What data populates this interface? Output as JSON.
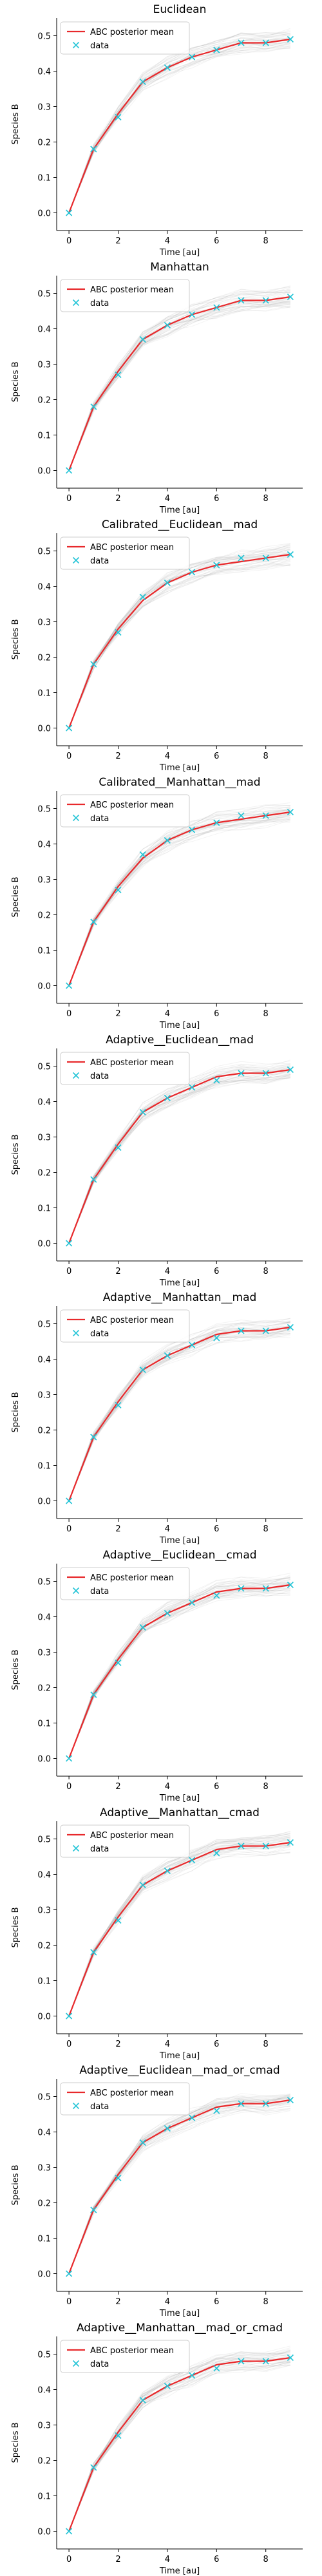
{
  "figure": {
    "colors": {
      "mean": "#e8292c",
      "data": "#22c4d6",
      "sims": "#9a9a9a"
    }
  },
  "chart_data": [
    {
      "type": "line",
      "title": "Euclidean",
      "xlabel": "Time [au]",
      "ylabel": "Species B",
      "xlim": [
        -0.5,
        9.5
      ],
      "ylim": [
        -0.05,
        0.55
      ],
      "xticks": [
        0,
        2,
        4,
        6,
        8
      ],
      "yticks": [
        0.0,
        0.1,
        0.2,
        0.3,
        0.4,
        0.5
      ],
      "grid": false,
      "legend_position": "top-left",
      "x": [
        0,
        1,
        2,
        3,
        4,
        5,
        6,
        7,
        8,
        9
      ],
      "series": [
        {
          "name": "ABC posterior mean",
          "values": [
            0.0,
            0.18,
            0.28,
            0.37,
            0.41,
            0.44,
            0.46,
            0.48,
            0.48,
            0.49
          ]
        },
        {
          "name": "data",
          "values": [
            0.0,
            0.18,
            0.27,
            0.37,
            0.41,
            0.44,
            0.46,
            0.48,
            0.48,
            0.49
          ]
        }
      ]
    },
    {
      "type": "line",
      "title": "Manhattan",
      "xlabel": "Time [au]",
      "ylabel": "Species B",
      "xlim": [
        -0.5,
        9.5
      ],
      "ylim": [
        -0.05,
        0.55
      ],
      "xticks": [
        0,
        2,
        4,
        6,
        8
      ],
      "yticks": [
        0.0,
        0.1,
        0.2,
        0.3,
        0.4,
        0.5
      ],
      "grid": false,
      "legend_position": "top-left",
      "x": [
        0,
        1,
        2,
        3,
        4,
        5,
        6,
        7,
        8,
        9
      ],
      "series": [
        {
          "name": "ABC posterior mean",
          "values": [
            0.0,
            0.18,
            0.28,
            0.37,
            0.41,
            0.44,
            0.46,
            0.48,
            0.48,
            0.49
          ]
        },
        {
          "name": "data",
          "values": [
            0.0,
            0.18,
            0.27,
            0.37,
            0.41,
            0.44,
            0.46,
            0.48,
            0.48,
            0.49
          ]
        }
      ]
    },
    {
      "type": "line",
      "title": "Calibrated__Euclidean__mad",
      "xlabel": "Time [au]",
      "ylabel": "Species B",
      "xlim": [
        -0.5,
        9.5
      ],
      "ylim": [
        -0.05,
        0.55
      ],
      "xticks": [
        0,
        2,
        4,
        6,
        8
      ],
      "yticks": [
        0.0,
        0.1,
        0.2,
        0.3,
        0.4,
        0.5
      ],
      "grid": false,
      "legend_position": "top-left",
      "x": [
        0,
        1,
        2,
        3,
        4,
        5,
        6,
        7,
        8,
        9
      ],
      "series": [
        {
          "name": "ABC posterior mean",
          "values": [
            0.0,
            0.18,
            0.28,
            0.36,
            0.41,
            0.44,
            0.46,
            0.47,
            0.48,
            0.49
          ]
        },
        {
          "name": "data",
          "values": [
            0.0,
            0.18,
            0.27,
            0.37,
            0.41,
            0.44,
            0.46,
            0.48,
            0.48,
            0.49
          ]
        }
      ]
    },
    {
      "type": "line",
      "title": "Calibrated__Manhattan__mad",
      "xlabel": "Time [au]",
      "ylabel": "Species B",
      "xlim": [
        -0.5,
        9.5
      ],
      "ylim": [
        -0.05,
        0.55
      ],
      "xticks": [
        0,
        2,
        4,
        6,
        8
      ],
      "yticks": [
        0.0,
        0.1,
        0.2,
        0.3,
        0.4,
        0.5
      ],
      "grid": false,
      "legend_position": "top-left",
      "x": [
        0,
        1,
        2,
        3,
        4,
        5,
        6,
        7,
        8,
        9
      ],
      "series": [
        {
          "name": "ABC posterior mean",
          "values": [
            0.0,
            0.18,
            0.28,
            0.36,
            0.41,
            0.44,
            0.46,
            0.47,
            0.48,
            0.49
          ]
        },
        {
          "name": "data",
          "values": [
            0.0,
            0.18,
            0.27,
            0.37,
            0.41,
            0.44,
            0.46,
            0.48,
            0.48,
            0.49
          ]
        }
      ]
    },
    {
      "type": "line",
      "title": "Adaptive__Euclidean__mad",
      "xlabel": "Time [au]",
      "ylabel": "Species B",
      "xlim": [
        -0.5,
        9.5
      ],
      "ylim": [
        -0.05,
        0.55
      ],
      "xticks": [
        0,
        2,
        4,
        6,
        8
      ],
      "yticks": [
        0.0,
        0.1,
        0.2,
        0.3,
        0.4,
        0.5
      ],
      "grid": false,
      "legend_position": "top-left",
      "x": [
        0,
        1,
        2,
        3,
        4,
        5,
        6,
        7,
        8,
        9
      ],
      "series": [
        {
          "name": "ABC posterior mean",
          "values": [
            0.0,
            0.18,
            0.28,
            0.37,
            0.41,
            0.44,
            0.47,
            0.48,
            0.48,
            0.49
          ]
        },
        {
          "name": "data",
          "values": [
            0.0,
            0.18,
            0.27,
            0.37,
            0.41,
            0.44,
            0.46,
            0.48,
            0.48,
            0.49
          ]
        }
      ]
    },
    {
      "type": "line",
      "title": "Adaptive__Manhattan__mad",
      "xlabel": "Time [au]",
      "ylabel": "Species B",
      "xlim": [
        -0.5,
        9.5
      ],
      "ylim": [
        -0.05,
        0.55
      ],
      "xticks": [
        0,
        2,
        4,
        6,
        8
      ],
      "yticks": [
        0.0,
        0.1,
        0.2,
        0.3,
        0.4,
        0.5
      ],
      "grid": false,
      "legend_position": "top-left",
      "x": [
        0,
        1,
        2,
        3,
        4,
        5,
        6,
        7,
        8,
        9
      ],
      "series": [
        {
          "name": "ABC posterior mean",
          "values": [
            0.0,
            0.18,
            0.28,
            0.37,
            0.41,
            0.44,
            0.47,
            0.48,
            0.48,
            0.49
          ]
        },
        {
          "name": "data",
          "values": [
            0.0,
            0.18,
            0.27,
            0.37,
            0.41,
            0.44,
            0.46,
            0.48,
            0.48,
            0.49
          ]
        }
      ]
    },
    {
      "type": "line",
      "title": "Adaptive__Euclidean__cmad",
      "xlabel": "Time [au]",
      "ylabel": "Species B",
      "xlim": [
        -0.5,
        9.5
      ],
      "ylim": [
        -0.05,
        0.55
      ],
      "xticks": [
        0,
        2,
        4,
        6,
        8
      ],
      "yticks": [
        0.0,
        0.1,
        0.2,
        0.3,
        0.4,
        0.5
      ],
      "grid": false,
      "legend_position": "top-left",
      "x": [
        0,
        1,
        2,
        3,
        4,
        5,
        6,
        7,
        8,
        9
      ],
      "series": [
        {
          "name": "ABC posterior mean",
          "values": [
            0.0,
            0.18,
            0.28,
            0.37,
            0.41,
            0.44,
            0.47,
            0.48,
            0.48,
            0.49
          ]
        },
        {
          "name": "data",
          "values": [
            0.0,
            0.18,
            0.27,
            0.37,
            0.41,
            0.44,
            0.46,
            0.48,
            0.48,
            0.49
          ]
        }
      ]
    },
    {
      "type": "line",
      "title": "Adaptive__Manhattan__cmad",
      "xlabel": "Time [au]",
      "ylabel": "Species B",
      "xlim": [
        -0.5,
        9.5
      ],
      "ylim": [
        -0.05,
        0.55
      ],
      "xticks": [
        0,
        2,
        4,
        6,
        8
      ],
      "yticks": [
        0.0,
        0.1,
        0.2,
        0.3,
        0.4,
        0.5
      ],
      "grid": false,
      "legend_position": "top-left",
      "x": [
        0,
        1,
        2,
        3,
        4,
        5,
        6,
        7,
        8,
        9
      ],
      "series": [
        {
          "name": "ABC posterior mean",
          "values": [
            0.0,
            0.18,
            0.28,
            0.37,
            0.41,
            0.44,
            0.47,
            0.48,
            0.48,
            0.49
          ]
        },
        {
          "name": "data",
          "values": [
            0.0,
            0.18,
            0.27,
            0.37,
            0.41,
            0.44,
            0.46,
            0.48,
            0.48,
            0.49
          ]
        }
      ]
    },
    {
      "type": "line",
      "title": "Adaptive__Euclidean__mad_or_cmad",
      "xlabel": "Time [au]",
      "ylabel": "Species B",
      "xlim": [
        -0.5,
        9.5
      ],
      "ylim": [
        -0.05,
        0.55
      ],
      "xticks": [
        0,
        2,
        4,
        6,
        8
      ],
      "yticks": [
        0.0,
        0.1,
        0.2,
        0.3,
        0.4,
        0.5
      ],
      "grid": false,
      "legend_position": "top-left",
      "x": [
        0,
        1,
        2,
        3,
        4,
        5,
        6,
        7,
        8,
        9
      ],
      "series": [
        {
          "name": "ABC posterior mean",
          "values": [
            0.0,
            0.18,
            0.28,
            0.37,
            0.41,
            0.44,
            0.47,
            0.48,
            0.48,
            0.49
          ]
        },
        {
          "name": "data",
          "values": [
            0.0,
            0.18,
            0.27,
            0.37,
            0.41,
            0.44,
            0.46,
            0.48,
            0.48,
            0.49
          ]
        }
      ]
    },
    {
      "type": "line",
      "title": "Adaptive__Manhattan__mad_or_cmad",
      "xlabel": "Time [au]",
      "ylabel": "Species B",
      "xlim": [
        -0.5,
        9.5
      ],
      "ylim": [
        -0.05,
        0.55
      ],
      "xticks": [
        0,
        2,
        4,
        6,
        8
      ],
      "yticks": [
        0.0,
        0.1,
        0.2,
        0.3,
        0.4,
        0.5
      ],
      "grid": false,
      "legend_position": "top-left",
      "x": [
        0,
        1,
        2,
        3,
        4,
        5,
        6,
        7,
        8,
        9
      ],
      "series": [
        {
          "name": "ABC posterior mean",
          "values": [
            0.0,
            0.18,
            0.28,
            0.37,
            0.41,
            0.44,
            0.47,
            0.48,
            0.48,
            0.49
          ]
        },
        {
          "name": "data",
          "values": [
            0.0,
            0.18,
            0.27,
            0.37,
            0.41,
            0.44,
            0.46,
            0.48,
            0.48,
            0.49
          ]
        }
      ]
    }
  ]
}
